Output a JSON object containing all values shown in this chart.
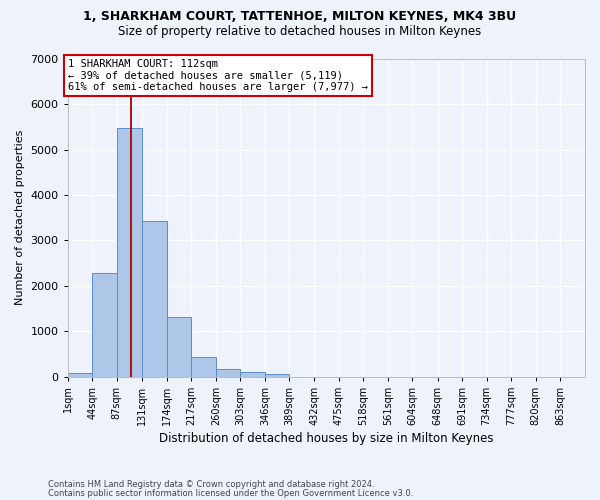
{
  "title_line1": "1, SHARKHAM COURT, TATTENHOE, MILTON KEYNES, MK4 3BU",
  "title_line2": "Size of property relative to detached houses in Milton Keynes",
  "xlabel": "Distribution of detached houses by size in Milton Keynes",
  "ylabel": "Number of detached properties",
  "footnote1": "Contains HM Land Registry data © Crown copyright and database right 2024.",
  "footnote2": "Contains public sector information licensed under the Open Government Licence v3.0.",
  "bar_labels": [
    "1sqm",
    "44sqm",
    "87sqm",
    "131sqm",
    "174sqm",
    "217sqm",
    "260sqm",
    "303sqm",
    "346sqm",
    "389sqm",
    "432sqm",
    "475sqm",
    "518sqm",
    "561sqm",
    "604sqm",
    "648sqm",
    "691sqm",
    "734sqm",
    "777sqm",
    "820sqm",
    "863sqm"
  ],
  "bar_heights": [
    75,
    2280,
    5480,
    3420,
    1310,
    430,
    165,
    90,
    55,
    0,
    0,
    0,
    0,
    0,
    0,
    0,
    0,
    0,
    0,
    0,
    0
  ],
  "bar_color": "#aec6e8",
  "bar_edge_color": "#5b8dc8",
  "background_color": "#eef3fb",
  "grid_color": "#ffffff",
  "vline_color": "#aa0000",
  "vline_x": 112,
  "annotation_line1": "1 SHARKHAM COURT: 112sqm",
  "annotation_line2": "← 39% of detached houses are smaller (5,119)",
  "annotation_line3": "61% of semi-detached houses are larger (7,977) →",
  "annotation_box_facecolor": "#ffffff",
  "annotation_box_edgecolor": "#cc0000",
  "ylim": [
    0,
    7000
  ],
  "bin_edges": [
    1,
    44,
    87,
    131,
    174,
    217,
    260,
    303,
    346,
    389,
    432,
    475,
    518,
    561,
    604,
    648,
    691,
    734,
    777,
    820,
    863,
    906
  ]
}
